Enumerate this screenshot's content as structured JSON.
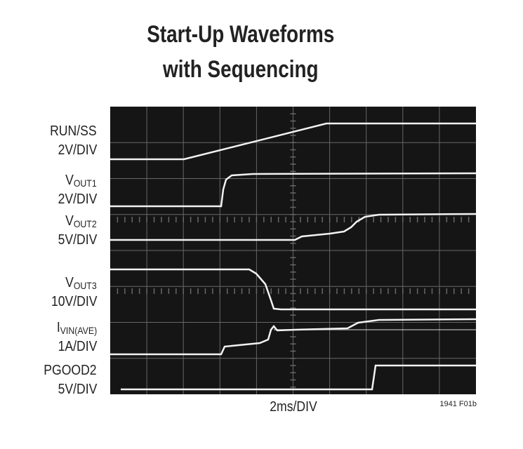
{
  "title": {
    "line1": "Start-Up Waveforms",
    "line2": "with Sequencing"
  },
  "channels": [
    {
      "main": "RUN/SS",
      "scale": "2V/DIV"
    },
    {
      "main": "V",
      "sub": "OUT1",
      "scale": "2V/DIV"
    },
    {
      "main": "V",
      "sub": "OUT2",
      "scale": "5V/DIV"
    },
    {
      "main": "V",
      "sub": "OUT3",
      "scale": "10V/DIV"
    },
    {
      "main": "I",
      "sub": "VIN(AVE)",
      "scale": "1A/DIV"
    },
    {
      "main": "PGOOD2",
      "scale": "5V/DIV"
    }
  ],
  "time_scale": "2ms/DIV",
  "figure_id": "1941 F01b"
}
